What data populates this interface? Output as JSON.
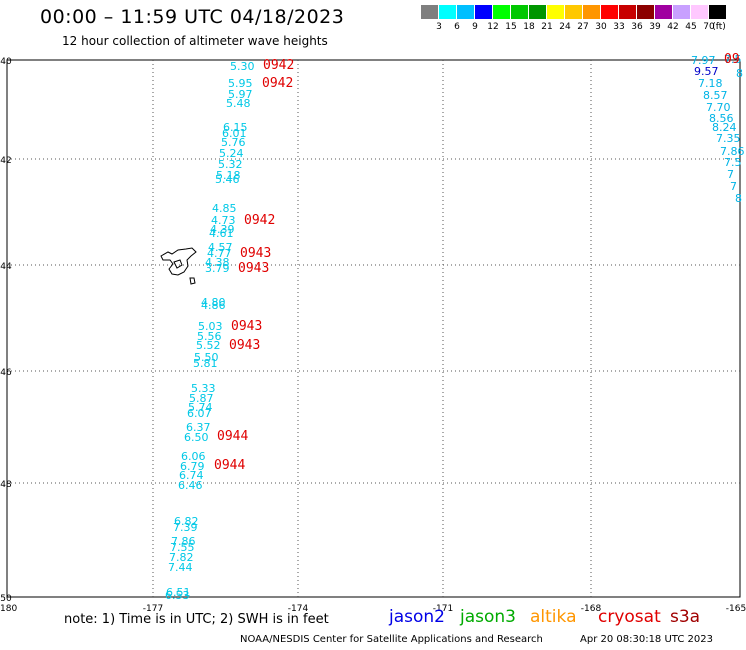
{
  "header": {
    "title": "00:00 – 11:59 UTC 04/18/2023",
    "subtitle": "12 hour collection of altimeter wave heights"
  },
  "legend": {
    "unit": "(ft)",
    "colors": [
      "#7f7f7f",
      "#00ffff",
      "#00bfff",
      "#0000ff",
      "#00ff00",
      "#00c800",
      "#009600",
      "#ffff00",
      "#ffc800",
      "#ff9600",
      "#ff0000",
      "#c80000",
      "#8c0000",
      "#a000a0",
      "#c8a0ff",
      "#ffc8ff",
      "#000000"
    ],
    "labels": [
      "3",
      "6",
      "9",
      "12",
      "15",
      "18",
      "21",
      "24",
      "27",
      "30",
      "33",
      "36",
      "39",
      "42",
      "45",
      "70"
    ]
  },
  "axes": {
    "lat_labels": [
      "-40",
      "-42",
      "-44",
      "-46",
      "-48",
      "-50"
    ],
    "lon_labels": [
      "-180",
      "-177",
      "-174",
      "-171",
      "-168",
      "-165"
    ]
  },
  "wave_heights": [
    {
      "v": "5.30",
      "c": "#00c8e6"
    },
    {
      "v": "5.95",
      "c": "#00c8e6"
    },
    {
      "v": "5.97",
      "c": "#00c8e6"
    },
    {
      "v": "5.48",
      "c": "#00c8e6"
    },
    {
      "v": "6.15",
      "c": "#00c8e6"
    },
    {
      "v": "6.01",
      "c": "#00c8e6"
    },
    {
      "v": "5.76",
      "c": "#00c8e6"
    },
    {
      "v": "5.24",
      "c": "#00c8e6"
    },
    {
      "v": "5.32",
      "c": "#00c8e6"
    },
    {
      "v": "5.18",
      "c": "#00c8e6"
    },
    {
      "v": "5.46",
      "c": "#00c8e6"
    },
    {
      "v": "4.85",
      "c": "#00c8e6"
    },
    {
      "v": "4.73",
      "c": "#00c8e6"
    },
    {
      "v": "4.39",
      "c": "#00c8e6"
    },
    {
      "v": "4.61",
      "c": "#00c8e6"
    },
    {
      "v": "4.57",
      "c": "#00c8e6"
    },
    {
      "v": "4.77",
      "c": "#00c8e6"
    },
    {
      "v": "4.38",
      "c": "#00c8e6"
    },
    {
      "v": "3.79",
      "c": "#00c8e6"
    },
    {
      "v": "4.80",
      "c": "#00c8e6"
    },
    {
      "v": "4.86",
      "c": "#00c8e6"
    },
    {
      "v": "5.03",
      "c": "#00c8e6"
    },
    {
      "v": "5.56",
      "c": "#00c8e6"
    },
    {
      "v": "5.52",
      "c": "#00c8e6"
    },
    {
      "v": "5.50",
      "c": "#00c8e6"
    },
    {
      "v": "5.81",
      "c": "#00c8e6"
    },
    {
      "v": "5.33",
      "c": "#00c8e6"
    },
    {
      "v": "5.87",
      "c": "#00c8e6"
    },
    {
      "v": "5.74",
      "c": "#00c8e6"
    },
    {
      "v": "6.07",
      "c": "#00c8e6"
    },
    {
      "v": "6.37",
      "c": "#00c8e6"
    },
    {
      "v": "6.50",
      "c": "#00c8e6"
    },
    {
      "v": "6.06",
      "c": "#00c8e6"
    },
    {
      "v": "6.79",
      "c": "#00c8e6"
    },
    {
      "v": "6.74",
      "c": "#00c8e6"
    },
    {
      "v": "6.46",
      "c": "#00c8e6"
    },
    {
      "v": "6.82",
      "c": "#00c8e6"
    },
    {
      "v": "7.39",
      "c": "#00c8e6"
    },
    {
      "v": "7.86",
      "c": "#00c8e6"
    },
    {
      "v": "7.55",
      "c": "#00c8e6"
    },
    {
      "v": "7.82",
      "c": "#00c8e6"
    },
    {
      "v": "7.44",
      "c": "#00c8e6"
    },
    {
      "v": "6.51",
      "c": "#00c8e6"
    },
    {
      "v": "6.53",
      "c": "#00c8e6"
    },
    {
      "v": "7.97",
      "c": "#00b4e6"
    },
    {
      "v": "9.57",
      "c": "#0000c8"
    },
    {
      "v": "7.18",
      "c": "#00b4e6"
    },
    {
      "v": "8.57",
      "c": "#00b4e6"
    },
    {
      "v": "7.70",
      "c": "#00b4e6"
    },
    {
      "v": "8.56",
      "c": "#00b4e6"
    },
    {
      "v": "8.24",
      "c": "#00b4e6"
    },
    {
      "v": "7.35",
      "c": "#00b4e6"
    },
    {
      "v": "7.86",
      "c": "#00b4e6"
    },
    {
      "v": "7.5",
      "c": "#00b4e6"
    },
    {
      "v": "7",
      "c": "#00b4e6"
    },
    {
      "v": "7",
      "c": "#00b4e6"
    },
    {
      "v": "8",
      "c": "#00b4e6"
    },
    {
      "v": "7.5",
      "c": "#00b4e6"
    },
    {
      "v": "8",
      "c": "#00b4e6"
    }
  ],
  "pass_times": [
    "0942",
    "0942",
    "0942",
    "0943",
    "0943",
    "0943",
    "0943",
    "0944",
    "0944",
    "09"
  ],
  "footer": {
    "note": "note:  1) Time is in UTC;  2) SWH is in feet",
    "satellites": [
      {
        "name": "jason2",
        "color": "#0000e6"
      },
      {
        "name": "jason3",
        "color": "#00aa00"
      },
      {
        "name": "altika",
        "color": "#ff9600"
      },
      {
        "name": "cryosat",
        "color": "#e00000"
      },
      {
        "name": "s3a",
        "color": "#a00000"
      }
    ],
    "credit": "NOAA/NESDIS Center for Satellite Applications and Research",
    "timestamp": "Apr 20 08:30:18 UTC 2023"
  }
}
